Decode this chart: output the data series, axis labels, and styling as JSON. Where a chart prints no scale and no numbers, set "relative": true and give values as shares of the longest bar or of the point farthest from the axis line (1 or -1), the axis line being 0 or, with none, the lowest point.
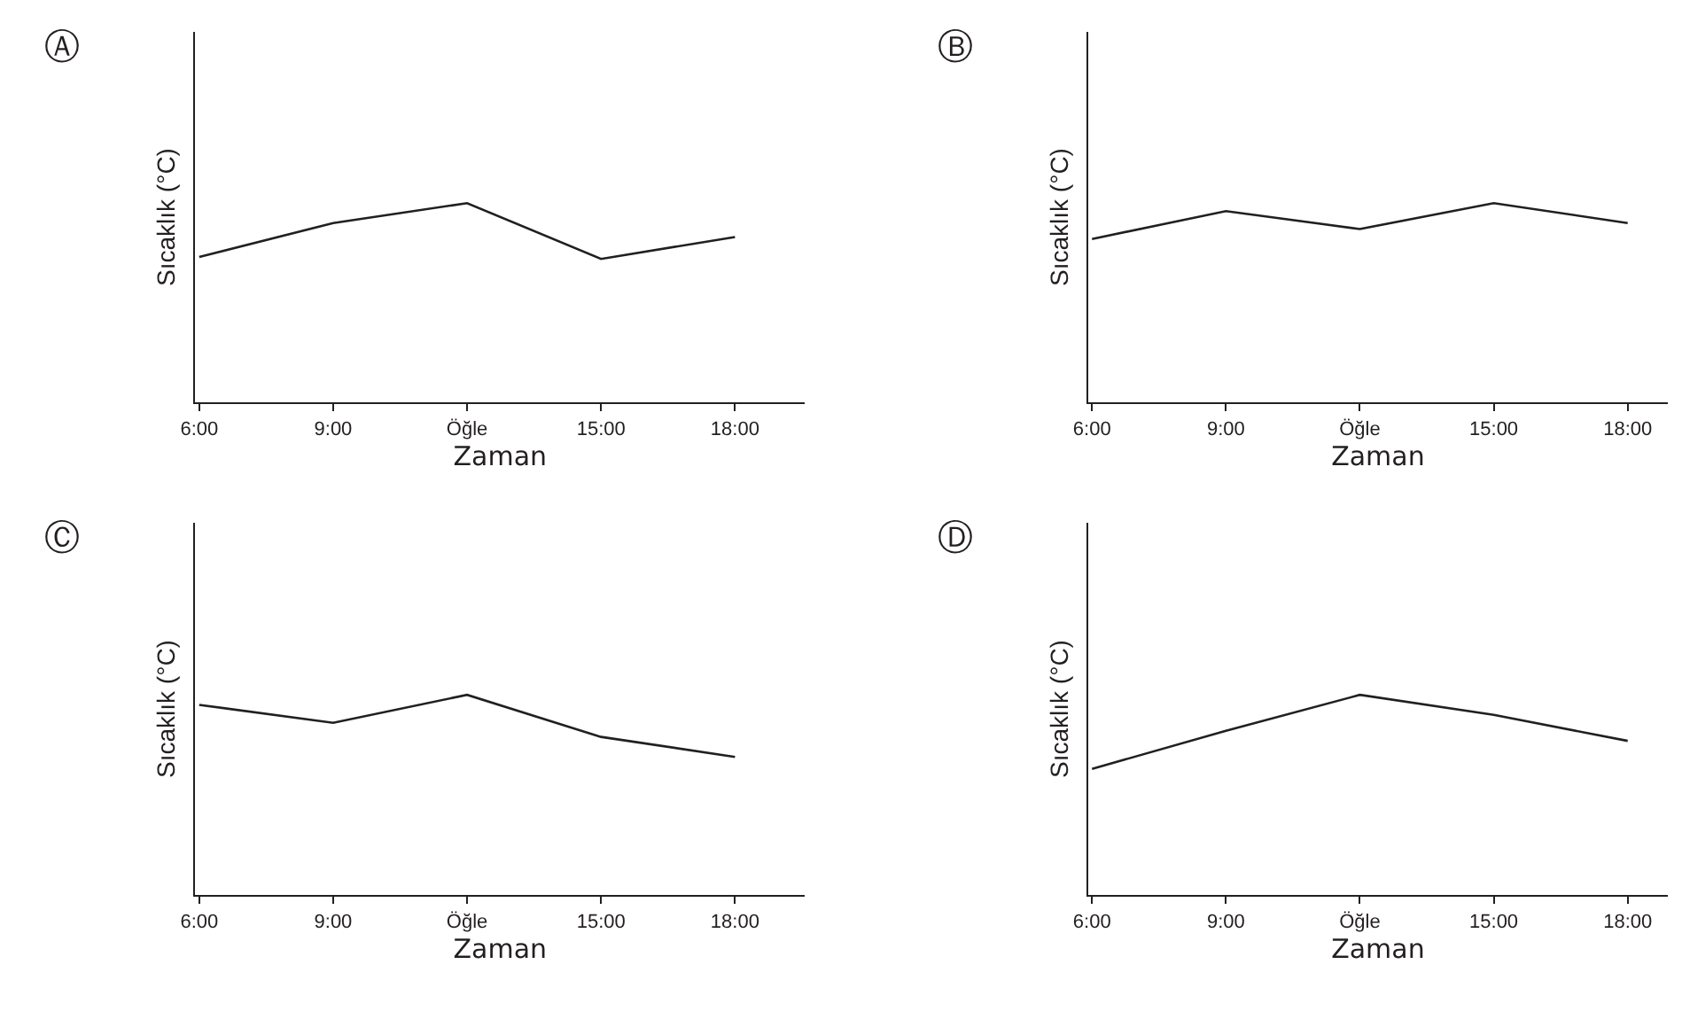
{
  "chart_data": [
    {
      "type": "line",
      "title": "Ⓐ",
      "xlabel": "Zaman",
      "ylabel": "Sıcaklık (°C)",
      "categories": [
        "6:00",
        "9:00",
        "Öğle",
        "15:00",
        "18:00"
      ],
      "relative": true,
      "series": [
        {
          "color": "#231f20",
          "values": [
            0.73,
            0.9,
            1,
            0.72,
            0.83
          ]
        }
      ]
    },
    {
      "type": "line",
      "title": "Ⓑ",
      "xlabel": "Zaman",
      "ylabel": "Sıcaklık (°C)",
      "categories": [
        "6:00",
        "9:00",
        "Öğle",
        "15:00",
        "18:00"
      ],
      "relative": true,
      "series": [
        {
          "color": "#231f20",
          "values": [
            0.82,
            0.96,
            0.87,
            1,
            0.9
          ]
        }
      ]
    },
    {
      "type": "line",
      "title": "Ⓒ",
      "xlabel": "Zaman",
      "ylabel": "Sıcaklık (°C)",
      "categories": [
        "6:00",
        "9:00",
        "Öğle",
        "15:00",
        "18:00"
      ],
      "relative": true,
      "series": [
        {
          "color": "#231f20",
          "values": [
            0.95,
            0.86,
            1,
            0.79,
            0.69
          ]
        }
      ]
    },
    {
      "type": "line",
      "title": "Ⓓ",
      "xlabel": "Zaman",
      "ylabel": "Sıcaklık (°C)",
      "categories": [
        "6:00",
        "9:00",
        "Öğle",
        "15:00",
        "18:00"
      ],
      "relative": true,
      "series": [
        {
          "color": "#231f20",
          "values": [
            0.63,
            0.82,
            1,
            0.9,
            0.77
          ]
        }
      ]
    }
  ]
}
